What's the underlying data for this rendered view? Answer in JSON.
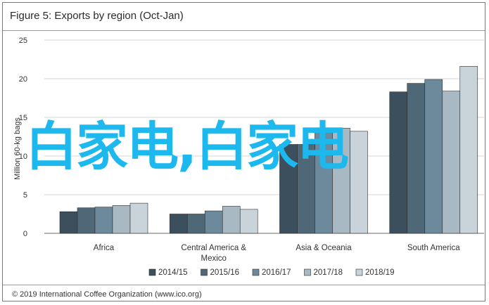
{
  "figure": {
    "title": "Figure 5: Exports by region (Oct-Jan)",
    "source": "© 2019 International Coffee Organization (www.ico.org)",
    "watermark": "白家电,白家电"
  },
  "colors": {
    "series": [
      "#3b4f5d",
      "#4f6878",
      "#6c8a9c",
      "#a8b9c4",
      "#c9d3da"
    ],
    "bar_outline": "#2e2e2e",
    "axis": "#6a6a6a",
    "gridline": "#d4d4d4",
    "watermark": "#1cb8ee"
  },
  "chart_data": {
    "type": "bar",
    "categories": [
      "Africa",
      "Central America & Mexico",
      "Asia & Oceania",
      "South America"
    ],
    "category_label_lines": [
      [
        "Africa"
      ],
      [
        "Central America &",
        "Mexico"
      ],
      [
        "Asia & Oceania"
      ],
      [
        "South America"
      ]
    ],
    "series": [
      {
        "name": "2014/15",
        "values": [
          2.8,
          2.5,
          11.5,
          18.3
        ]
      },
      {
        "name": "2015/16",
        "values": [
          3.3,
          2.5,
          11.5,
          19.4
        ]
      },
      {
        "name": "2016/17",
        "values": [
          3.4,
          2.9,
          13.2,
          19.9
        ]
      },
      {
        "name": "2017/18",
        "values": [
          3.6,
          3.5,
          13.6,
          18.4
        ]
      },
      {
        "name": "2018/19",
        "values": [
          3.9,
          3.1,
          13.2,
          21.6
        ]
      }
    ],
    "title": "Figure 5: Exports by region (Oct-Jan)",
    "xlabel": "",
    "ylabel": "Million 60-kg bags",
    "ylim": [
      0,
      25
    ],
    "yticks": [
      0,
      5,
      10,
      15,
      20,
      25
    ],
    "grid": true,
    "legend": "bottom"
  }
}
